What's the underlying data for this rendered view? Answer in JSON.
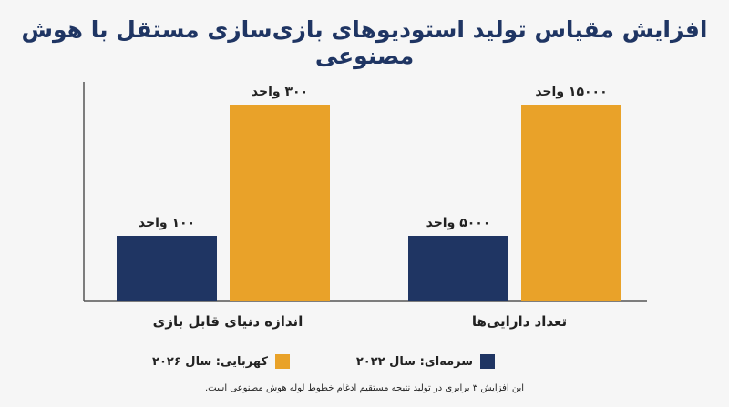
{
  "chart_data": {
    "type": "bar",
    "title": "افزایش مقیاس تولید استودیوهای بازی‌سازی مستقل با هوش مصنوعی",
    "categories": [
      "تعداد دارایی‌ها",
      "اندازه دنیای قابل بازی"
    ],
    "series": [
      {
        "name": "سرمه‌ای: سال ۲۰۲۲",
        "color": "#1f3563",
        "values": [
          5000,
          100
        ],
        "labels": [
          "۵۰۰۰ واحد",
          "۱۰۰ واحد"
        ]
      },
      {
        "name": "کهربایی: سال ۲۰۲۶",
        "color": "#e9a229",
        "values": [
          15000,
          300
        ],
        "labels": [
          "۱۵۰۰۰ واحد",
          "۳۰۰ واحد"
        ]
      }
    ],
    "category_max": [
      15000,
      300
    ],
    "legend_position": "bottom",
    "grid": false,
    "footnote": "این افزایش ۳ برابری در تولید نتیجه مستقیم ادغام خطوط لوله هوش مصنوعی است."
  }
}
